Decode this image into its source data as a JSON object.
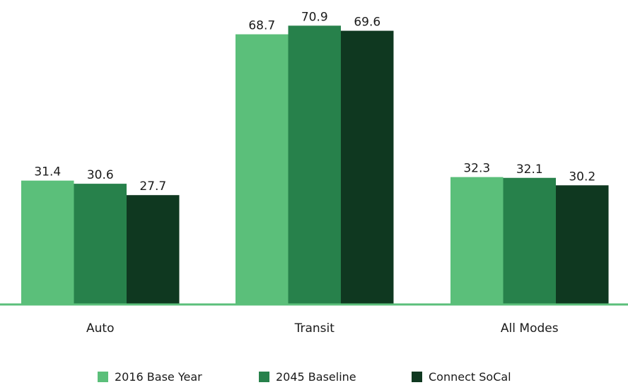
{
  "chart_data": {
    "type": "bar",
    "categories": [
      "Auto",
      "Transit",
      "All Modes"
    ],
    "series": [
      {
        "name": "2016 Base Year",
        "values": [
          31.4,
          68.7,
          32.3
        ],
        "color": "#5bbf7a"
      },
      {
        "name": "2045 Baseline",
        "values": [
          30.6,
          70.9,
          32.1
        ],
        "color": "#27814b"
      },
      {
        "name": "Connect SoCal",
        "values": [
          27.7,
          69.6,
          30.2
        ],
        "color": "#0f3820"
      }
    ],
    "title": "",
    "xlabel": "",
    "ylabel": "",
    "ylim": [
      0,
      71.5
    ],
    "grid": false,
    "legend": "bottom-center",
    "baseline_color": "#5bbf7a"
  }
}
